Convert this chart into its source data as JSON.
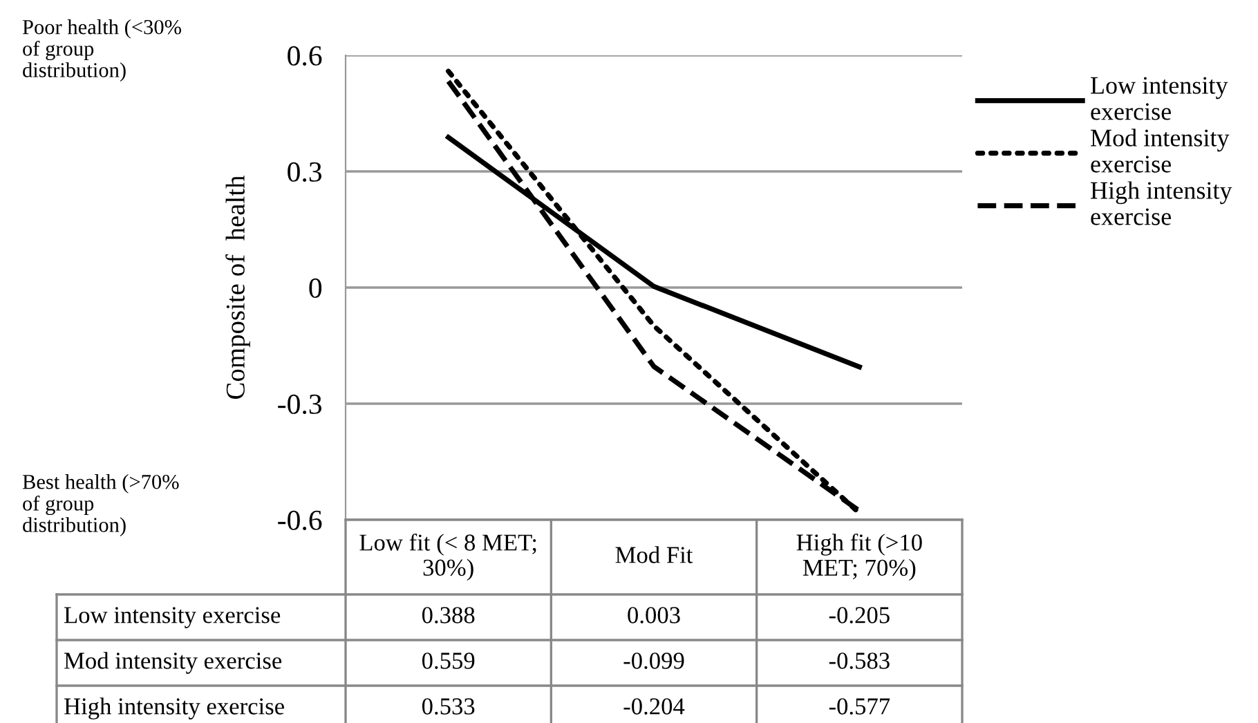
{
  "chart_data": {
    "type": "line",
    "categories": [
      "Low fit (< 8 MET; 30%)",
      "Mod Fit",
      "High fit (>10 MET; 70%)"
    ],
    "series": [
      {
        "name": "Low intensity exercise",
        "color": "#000000",
        "line_style": "solid",
        "values": [
          0.388,
          0.003,
          -0.205
        ]
      },
      {
        "name": "Mod intensity exercise",
        "color": "#000000",
        "line_style": "dotted",
        "values": [
          0.559,
          -0.099,
          -0.583
        ]
      },
      {
        "name": "High intensity exercise",
        "color": "#000000",
        "line_style": "dashed",
        "values": [
          0.533,
          -0.204,
          -0.577
        ]
      }
    ],
    "ylabel": "Composite of  health",
    "ylim": [
      -0.6,
      0.6
    ],
    "yticks": [
      -0.6,
      -0.3,
      0,
      0.3,
      0.6
    ],
    "grid": "y",
    "legend": "top right",
    "marker": "none",
    "data_labels": true,
    "annotations": [
      "Poor health (<30% of group distribution)",
      "Best health (>70% of group distribution)"
    ]
  }
}
